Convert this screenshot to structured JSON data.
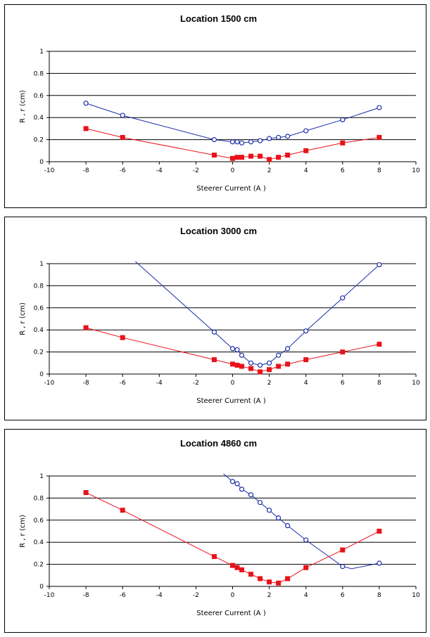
{
  "chart_data": [
    {
      "type": "line",
      "title": "Location 1500 cm",
      "xlabel": "Steerer Current (A )",
      "ylabel": "R , r (cm)",
      "xlim": [
        -10,
        10
      ],
      "ylim": [
        0,
        1
      ],
      "xticks": [
        -10,
        -8,
        -6,
        -4,
        -2,
        0,
        2,
        4,
        6,
        8,
        10
      ],
      "yticks": [
        0,
        0.2,
        0.4,
        0.6,
        0.8,
        1
      ],
      "ytick_labels": [
        "0",
        "0.2",
        "0.4",
        "0.6",
        "0.8",
        "1"
      ],
      "grid": "horizontal",
      "series": [
        {
          "color": "#1c2ea8",
          "marker": "open-circle",
          "x": [
            -8,
            -6,
            -1,
            0,
            0.25,
            0.5,
            1,
            1.5,
            2,
            2.5,
            3,
            4,
            6,
            8
          ],
          "y": [
            0.53,
            0.42,
            0.2,
            0.18,
            0.18,
            0.17,
            0.18,
            0.19,
            0.21,
            0.22,
            0.23,
            0.28,
            0.38,
            0.49
          ]
        },
        {
          "color": "#e8121a",
          "marker": "filled-square",
          "x": [
            -8,
            -6,
            -1,
            0,
            0.25,
            0.5,
            1,
            1.5,
            2,
            2.5,
            3,
            4,
            6,
            8
          ],
          "y": [
            0.3,
            0.22,
            0.06,
            0.03,
            0.04,
            0.04,
            0.05,
            0.05,
            0.02,
            0.04,
            0.06,
            0.1,
            0.17,
            0.22
          ]
        }
      ]
    },
    {
      "type": "line",
      "title": "Location 3000 cm",
      "xlabel": "Steerer Current (A )",
      "ylabel": "R , r (cm)",
      "xlim": [
        -10,
        10
      ],
      "ylim": [
        0,
        1
      ],
      "xticks": [
        -10,
        -8,
        -6,
        -4,
        -2,
        0,
        2,
        4,
        6,
        8,
        10
      ],
      "yticks": [
        0,
        0.2,
        0.4,
        0.6,
        0.8,
        1
      ],
      "ytick_labels": [
        "0",
        "0.2",
        "0.4",
        "0.6",
        "0.8",
        "1"
      ],
      "grid": "horizontal",
      "series": [
        {
          "color": "#1c2ea8",
          "marker": "open-circle",
          "x": [
            -5.3,
            -1,
            0,
            0.25,
            0.5,
            1,
            1.5,
            2,
            2.5,
            3,
            4,
            6,
            8
          ],
          "y": [
            1.02,
            0.38,
            0.23,
            0.22,
            0.17,
            0.1,
            0.08,
            0.1,
            0.17,
            0.23,
            0.39,
            0.69,
            0.99
          ],
          "markers_from_index": 1
        },
        {
          "color": "#e8121a",
          "marker": "filled-square",
          "x": [
            -8,
            -6,
            -1,
            0,
            0.25,
            0.5,
            1,
            1.5,
            2,
            2.5,
            3,
            4,
            6,
            8
          ],
          "y": [
            0.42,
            0.33,
            0.13,
            0.09,
            0.08,
            0.07,
            0.05,
            0.02,
            0.04,
            0.07,
            0.09,
            0.13,
            0.2,
            0.27
          ]
        }
      ]
    },
    {
      "type": "line",
      "title": "Location 4860 cm",
      "xlabel": "Steerer Current (A )",
      "ylabel": "R , r (cm)",
      "xlim": [
        -10,
        10
      ],
      "ylim": [
        0,
        1
      ],
      "xticks": [
        -10,
        -8,
        -6,
        -4,
        -2,
        0,
        2,
        4,
        6,
        8,
        10
      ],
      "yticks": [
        0,
        0.2,
        0.4,
        0.6,
        0.8,
        1
      ],
      "ytick_labels": [
        "0",
        "0.2",
        "0.4",
        "0.6",
        "0.8",
        "1"
      ],
      "grid": "horizontal",
      "series": [
        {
          "color": "#1c2ea8",
          "marker": "open-circle",
          "x": [
            -0.5,
            0,
            0.25,
            0.5,
            1,
            1.5,
            2,
            2.5,
            3,
            4,
            6,
            6.5,
            8
          ],
          "y": [
            1.02,
            0.95,
            0.93,
            0.88,
            0.83,
            0.76,
            0.69,
            0.62,
            0.55,
            0.42,
            0.18,
            0.16,
            0.21
          ],
          "markers_from_index": 1,
          "no_marker_indices": [
            11
          ]
        },
        {
          "color": "#e8121a",
          "marker": "filled-square",
          "x": [
            -8,
            -6,
            -1,
            0,
            0.25,
            0.5,
            1,
            1.5,
            2,
            2.5,
            3,
            4,
            6,
            8
          ],
          "y": [
            0.85,
            0.69,
            0.27,
            0.19,
            0.17,
            0.15,
            0.11,
            0.07,
            0.04,
            0.03,
            0.07,
            0.17,
            0.33,
            0.5
          ]
        }
      ]
    }
  ]
}
